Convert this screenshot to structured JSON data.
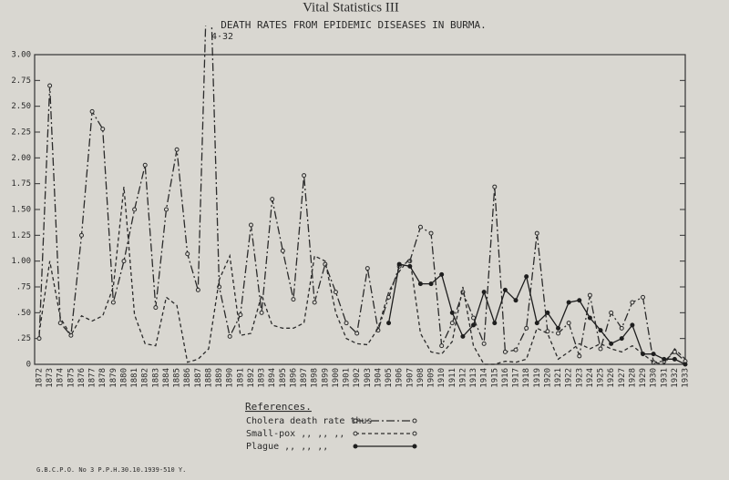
{
  "chart_data": {
    "type": "line",
    "title": "Vital Statistics III",
    "subtitle": "DEATH RATES FROM EPIDEMIC DISEASES IN BURMA.",
    "annotations": [
      {
        "text": "4·32",
        "x": "1888"
      }
    ],
    "categories": [
      "1872",
      "1873",
      "1874",
      "1875",
      "1876",
      "1877",
      "1878",
      "1879",
      "1880",
      "1881",
      "1882",
      "1883",
      "1884",
      "1885",
      "1886",
      "1887",
      "1888",
      "1889",
      "1890",
      "1891",
      "1892",
      "1893",
      "1894",
      "1895",
      "1896",
      "1897",
      "1898",
      "1899",
      "1900",
      "1901",
      "1902",
      "1903",
      "1904",
      "1905",
      "1906",
      "1907",
      "1908",
      "1909",
      "1910",
      "1911",
      "1912",
      "1913",
      "1914",
      "1915",
      "1916",
      "1917",
      "1918",
      "1919",
      "1920",
      "1921",
      "1922",
      "1923",
      "1924",
      "1925",
      "1926",
      "1927",
      "1928",
      "1929",
      "1930",
      "1931",
      "1932",
      "1933"
    ],
    "series": [
      {
        "name": "Cholera death rate thus",
        "color": "#2b2b2b",
        "dash": "9,3,2,3",
        "marker": "open",
        "values": [
          0.25,
          2.7,
          0.4,
          0.28,
          1.25,
          2.45,
          2.28,
          0.6,
          1.0,
          1.5,
          1.93,
          0.55,
          1.5,
          2.08,
          1.07,
          0.72,
          4.32,
          0.75,
          0.27,
          0.48,
          1.35,
          0.5,
          1.6,
          1.1,
          0.63,
          1.83,
          0.6,
          0.97,
          0.7,
          0.4,
          0.3,
          0.93,
          0.33,
          0.65,
          0.95,
          1.0,
          1.33,
          1.27,
          0.18,
          0.4,
          0.7,
          0.45,
          0.2,
          1.72,
          0.12,
          0.14,
          0.35,
          1.27,
          0.32,
          0.3,
          0.4,
          0.08,
          0.67,
          0.15,
          0.5,
          0.35,
          0.6,
          0.65,
          0.02,
          0.03,
          0.12,
          0.03
        ]
      },
      {
        "name": "Small-pox  ,,   ,,   ,,",
        "color": "#2b2b2b",
        "dash": "4,3",
        "marker": "none",
        "values": [
          0.3,
          1.0,
          0.45,
          0.28,
          0.47,
          0.42,
          0.47,
          0.75,
          1.72,
          0.48,
          0.2,
          0.18,
          0.65,
          0.57,
          0.02,
          0.05,
          0.15,
          0.82,
          1.05,
          0.28,
          0.3,
          0.67,
          0.38,
          0.35,
          0.35,
          0.4,
          1.05,
          1.0,
          0.5,
          0.25,
          0.2,
          0.19,
          0.35,
          0.7,
          0.9,
          1.03,
          0.3,
          0.12,
          0.1,
          0.22,
          0.75,
          0.18,
          0.0,
          0.0,
          0.03,
          0.02,
          0.05,
          0.35,
          0.3,
          0.05,
          0.12,
          0.2,
          0.15,
          0.2,
          0.15,
          0.12,
          0.18,
          0.1,
          0.02,
          0.0,
          0.15,
          0.05
        ]
      },
      {
        "name": "Plague   ,,   ,,   ,,",
        "color": "#1e1e1e",
        "dash": "none",
        "marker": "filled",
        "values": [
          null,
          null,
          null,
          null,
          null,
          null,
          null,
          null,
          null,
          null,
          null,
          null,
          null,
          null,
          null,
          null,
          null,
          null,
          null,
          null,
          null,
          null,
          null,
          null,
          null,
          null,
          null,
          null,
          null,
          null,
          null,
          null,
          null,
          0.4,
          0.97,
          0.95,
          0.78,
          0.78,
          0.87,
          0.5,
          0.27,
          0.38,
          0.7,
          0.4,
          0.72,
          0.62,
          0.85,
          0.4,
          0.5,
          0.35,
          0.6,
          0.62,
          0.45,
          0.33,
          0.2,
          0.25,
          0.38,
          0.1,
          0.1,
          0.05,
          0.05,
          0.0
        ]
      }
    ],
    "ylim": [
      0,
      3
    ],
    "yticks": [
      0,
      {
        "value": 0.25,
        "label": ".25"
      },
      {
        "value": 0.5,
        "label": ".50"
      },
      {
        "value": 0.75,
        "label": ".75"
      },
      {
        "value": 1,
        "label": "1.00"
      },
      {
        "value": 1.25,
        "label": "1.25"
      },
      {
        "value": 1.5,
        "label": "1.50"
      },
      {
        "value": 1.75,
        "label": "1.75"
      },
      {
        "value": 2,
        "label": "2.00"
      },
      {
        "value": 2.25,
        "label": "2.25"
      },
      {
        "value": 2.5,
        "label": "2.50"
      },
      {
        "value": 2.75,
        "label": "2.75"
      },
      {
        "value": 3,
        "label": "3.00"
      }
    ],
    "legend_title": "References.",
    "footer": "G.B.C.P.O. No 3 P.P.H.30.10.1939-510 Y."
  }
}
